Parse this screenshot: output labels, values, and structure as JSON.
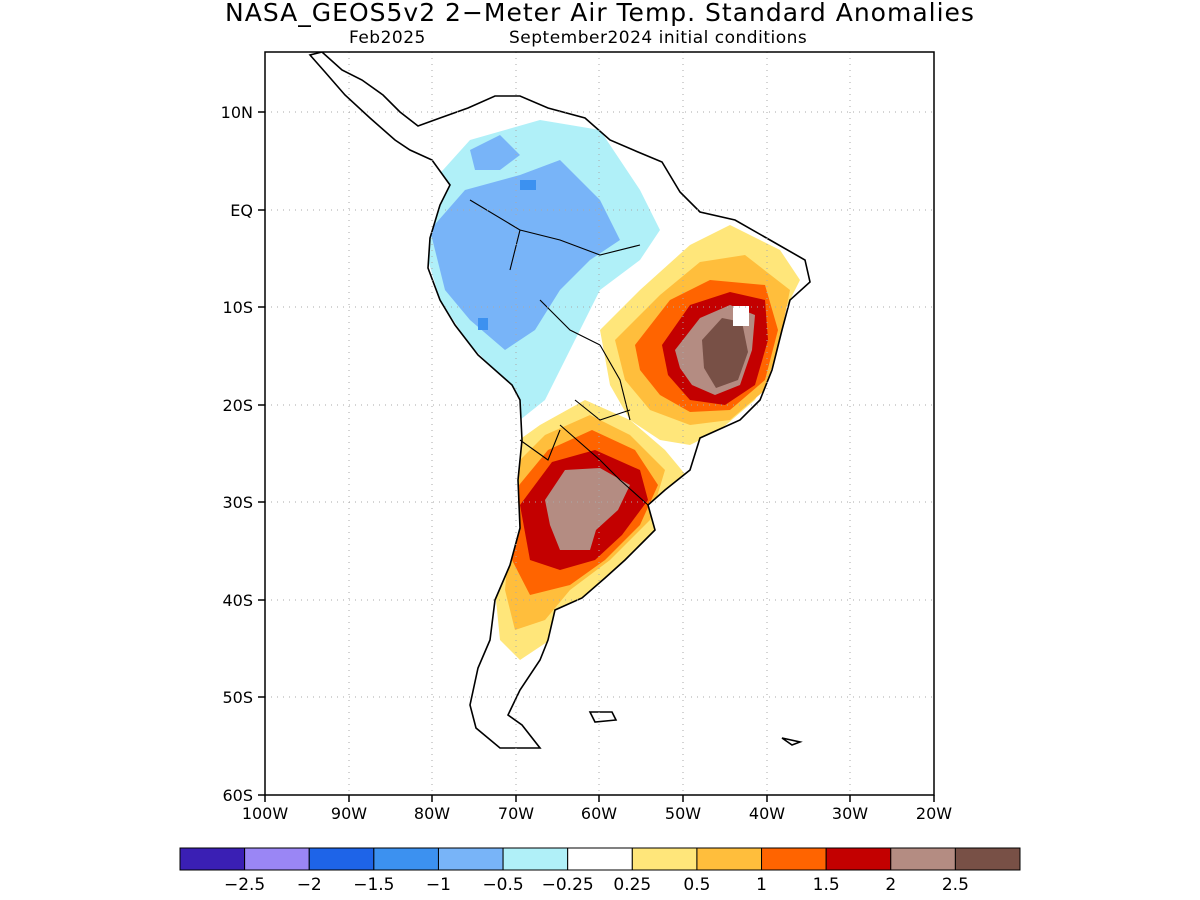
{
  "title": "NASA_GEOS5v2 2−Meter Air Temp. Standard Anomalies",
  "subtitle_left": "Feb2025",
  "subtitle_right": "September2024 initial conditions",
  "lat_ticks": [
    "10N",
    "EQ",
    "10S",
    "20S",
    "30S",
    "40S",
    "50S",
    "60S"
  ],
  "lon_ticks": [
    "100W",
    "90W",
    "80W",
    "70W",
    "60W",
    "50W",
    "40W",
    "30W",
    "20W"
  ],
  "colorbar": {
    "colors": [
      "#3a1fb4",
      "#9a86f5",
      "#1e64e8",
      "#3c91f0",
      "#78b4f8",
      "#b0f0f8",
      "#ffffff",
      "#ffe67a",
      "#ffbe3c",
      "#ff6400",
      "#c30000",
      "#b48c82",
      "#785046"
    ],
    "labels": [
      "−2.5",
      "−2",
      "−1.5",
      "−1",
      "−0.5",
      "−0.25",
      "0.25",
      "0.5",
      "1",
      "1.5",
      "2",
      "2.5"
    ]
  }
}
